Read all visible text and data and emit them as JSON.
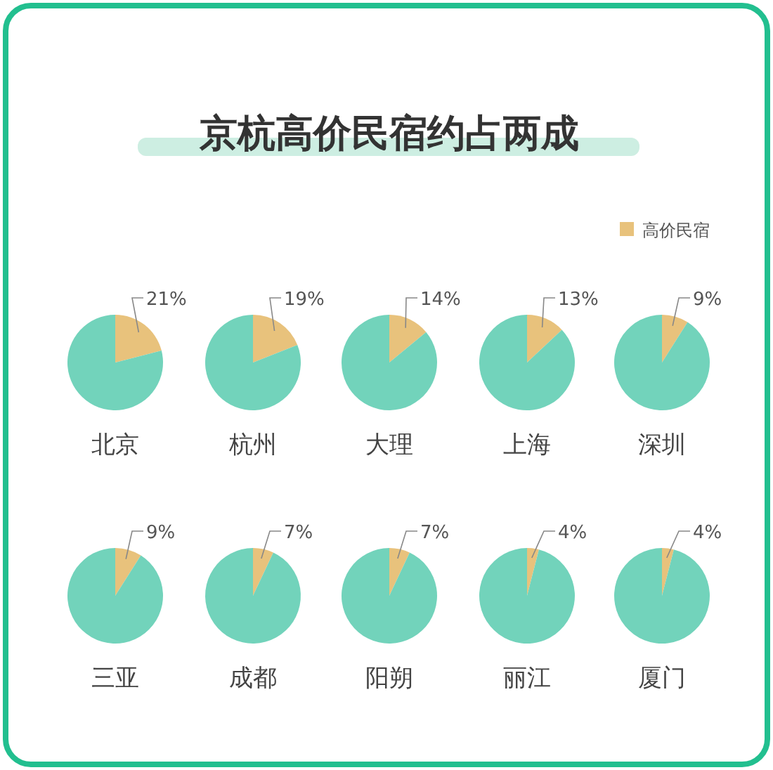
{
  "chart_data": [
    {
      "type": "other",
      "title": "京杭高价民宿约占两成"
    },
    {
      "type": "pie",
      "xlabel": "北京",
      "categories": [
        null,
        null
      ],
      "values": [
        21,
        79
      ],
      "colors": [
        "#e8c27c",
        "#72d3bb"
      ],
      "value_labels": [
        "21%",
        null
      ]
    },
    {
      "type": "pie",
      "xlabel": "杭州",
      "categories": [
        null,
        null
      ],
      "values": [
        19,
        81
      ],
      "colors": [
        "#e8c27c",
        "#72d3bb"
      ],
      "value_labels": [
        "19%",
        null
      ]
    },
    {
      "type": "pie",
      "xlabel": "大理",
      "categories": [
        null,
        null
      ],
      "values": [
        14,
        86
      ],
      "colors": [
        "#e8c27c",
        "#72d3bb"
      ],
      "value_labels": [
        "14%",
        null
      ]
    },
    {
      "type": "pie",
      "xlabel": "上海",
      "categories": [
        null,
        null
      ],
      "values": [
        13,
        87
      ],
      "colors": [
        "#e8c27c",
        "#72d3bb"
      ],
      "value_labels": [
        "13%",
        null
      ]
    },
    {
      "type": "pie",
      "xlabel": "深圳",
      "categories": [
        "高价民宿",
        null
      ],
      "values": [
        9,
        91
      ],
      "colors": [
        "#e8c27c",
        "#72d3bb"
      ],
      "value_labels": [
        "9%",
        null
      ],
      "legend": "top right"
    },
    {
      "type": "pie",
      "xlabel": "三亚",
      "categories": [
        null,
        null
      ],
      "values": [
        9,
        91
      ],
      "colors": [
        "#e8c27c",
        "#72d3bb"
      ],
      "value_labels": [
        "9%",
        null
      ]
    },
    {
      "type": "pie",
      "xlabel": "成都",
      "categories": [
        null,
        null
      ],
      "values": [
        7,
        93
      ],
      "colors": [
        "#e8c27c",
        "#72d3bb"
      ],
      "value_labels": [
        "7%",
        null
      ]
    },
    {
      "type": "pie",
      "xlabel": "阳朔",
      "categories": [
        null,
        null
      ],
      "values": [
        7,
        93
      ],
      "colors": [
        "#e8c27c",
        "#72d3bb"
      ],
      "value_labels": [
        "7%",
        null
      ]
    },
    {
      "type": "pie",
      "xlabel": "丽江",
      "categories": [
        null,
        null
      ],
      "values": [
        4,
        96
      ],
      "colors": [
        "#e8c27c",
        "#72d3bb"
      ],
      "value_labels": [
        "4%",
        null
      ]
    },
    {
      "type": "pie",
      "xlabel": "厦门",
      "categories": [
        null,
        null
      ],
      "values": [
        4,
        96
      ],
      "colors": [
        "#e8c27c",
        "#72d3bb"
      ],
      "value_labels": [
        "4%",
        null
      ]
    }
  ]
}
